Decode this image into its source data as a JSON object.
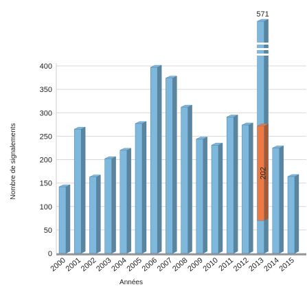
{
  "chart_data": {
    "type": "bar",
    "title": "",
    "xlabel": "Années",
    "ylabel": "Nombre de signalements",
    "ylim": [
      0,
      400
    ],
    "yticks": [
      0,
      50,
      100,
      150,
      200,
      250,
      300,
      350,
      400
    ],
    "grid": true,
    "axis_break": true,
    "categories": [
      "2000",
      "2001",
      "2002",
      "2003",
      "2004",
      "2005",
      "2006",
      "2007",
      "2008",
      "2009",
      "2010",
      "2011",
      "2012",
      "2013",
      "2014",
      "2015"
    ],
    "series": [
      {
        "name": "",
        "color": "#7fb8dd",
        "values": [
          142,
          265,
          163,
          202,
          220,
          277,
          397,
          374,
          312,
          244,
          231,
          291,
          274,
          571,
          225,
          164
        ]
      },
      {
        "name": "",
        "color": "#ee7a42",
        "values": [
          0,
          0,
          0,
          0,
          0,
          0,
          0,
          0,
          0,
          0,
          0,
          0,
          0,
          202,
          0,
          0
        ],
        "base": [
          0,
          0,
          0,
          0,
          0,
          0,
          0,
          0,
          0,
          0,
          0,
          0,
          0,
          70,
          0,
          0
        ]
      }
    ],
    "data_labels": [
      {
        "category": "2013",
        "text": "571"
      },
      {
        "category": "2013",
        "text": "202"
      }
    ]
  }
}
